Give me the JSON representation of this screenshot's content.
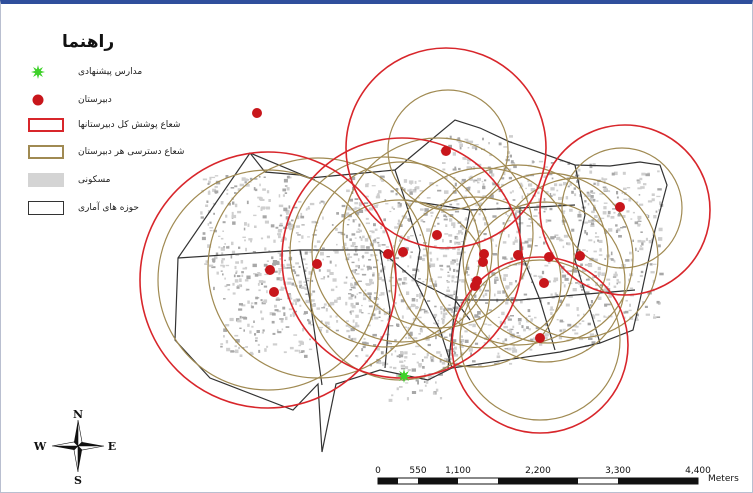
{
  "legend": {
    "title": "راهنما",
    "items": [
      {
        "label": "مدارس پیشنهادی",
        "symbol": "star",
        "color": "#3fd12b"
      },
      {
        "label": "دبیرستان",
        "symbol": "dot",
        "color": "#c8161b"
      },
      {
        "label": "شعاع پوشش کل دبیرستانها",
        "symbol": "box",
        "color": "#d8262b"
      },
      {
        "label": "شعاع دسترسی هر دبیرستان",
        "symbol": "box",
        "color": "#a08a52"
      },
      {
        "label": "مسکونی",
        "symbol": "fill",
        "color": "#d4d4d4"
      },
      {
        "label": "حوزه های آماری",
        "symbol": "box",
        "color": "#333333"
      }
    ]
  },
  "north_arrow": {
    "n": "N",
    "s": "S",
    "e": "E",
    "w": "W"
  },
  "scale_bar": {
    "ticks": [
      "0",
      "550",
      "1,100",
      "2,200",
      "3,300",
      "4,400"
    ],
    "unit": "Meters"
  },
  "colors": {
    "frame_top": "#2f4f9c",
    "coverage_circle": "#d8262b",
    "access_circle": "#a08a52",
    "school_dot": "#c8161b",
    "proposed_school": "#3fd12b",
    "residential": "#d4d4d4",
    "boundary": "#333333"
  }
}
